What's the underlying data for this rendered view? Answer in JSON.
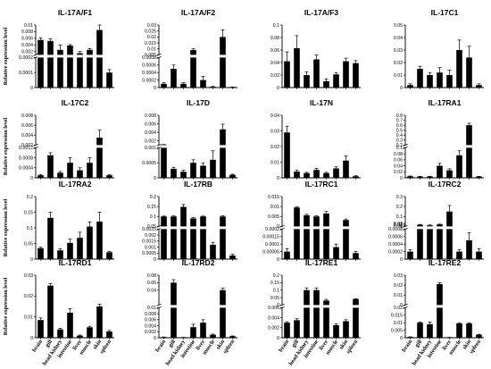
{
  "figure": {
    "ylabel": "Relative expression level",
    "categories": [
      "brain",
      "gill",
      "head kidney",
      "intestine",
      "liver",
      "muscle",
      "skin",
      "spleen"
    ]
  },
  "chart_data": [
    {
      "type": "bar",
      "title": "IL-17A/F1",
      "categories": [
        "brain",
        "gill",
        "head kidney",
        "intestine",
        "liver",
        "muscle",
        "skin",
        "spleen"
      ],
      "values": [
        0.0055,
        0.0052,
        0.0025,
        0.0038,
        0.0015,
        0.0025,
        0.0085,
        0.0001
      ],
      "error": [
        0.0006,
        0.0006,
        0.0015,
        0.0003,
        0.0005,
        0.0004,
        0.0022,
        2e-05
      ],
      "axis": {
        "type": "broken",
        "lower": {
          "range": [
            0,
            0.0002
          ],
          "ticks": [
            0,
            0.0001,
            0.0002
          ]
        },
        "upper": {
          "range": [
            0.001,
            0.01
          ],
          "ticks": [
            0.002,
            0.004,
            0.006,
            0.008,
            0.01
          ]
        }
      }
    },
    {
      "type": "bar",
      "title": "IL-17A/F2",
      "categories": [
        "brain",
        "gill",
        "head kidney",
        "intestine",
        "liver",
        "muscle",
        "skin",
        "spleen"
      ],
      "values": [
        0.0001,
        0.0005,
        0.0001,
        0.009,
        0.0002,
        2e-05,
        0.02,
        1e-05
      ],
      "error": [
        3e-05,
        0.0001,
        3e-05,
        0.001,
        0.0001,
        1e-05,
        0.006,
        5e-06
      ],
      "axis": {
        "type": "broken",
        "lower": {
          "range": [
            0,
            0.0008
          ],
          "ticks": [
            0,
            0.0002,
            0.0004,
            0.0006,
            0.0008
          ]
        },
        "upper": {
          "range": [
            0.005,
            0.03
          ],
          "ticks": [
            0.005,
            0.01,
            0.015,
            0.02,
            0.025,
            0.03
          ]
        }
      }
    },
    {
      "type": "bar",
      "title": "IL-17A/F3",
      "categories": [
        "brain",
        "gill",
        "head kidney",
        "intestine",
        "liver",
        "muscle",
        "skin",
        "spleen"
      ],
      "values": [
        0.042,
        0.063,
        0.02,
        0.045,
        0.01,
        0.021,
        0.042,
        0.039
      ],
      "error": [
        0.015,
        0.02,
        0.005,
        0.007,
        0.004,
        0.003,
        0.005,
        0.004
      ],
      "axis": {
        "type": "linear",
        "range": [
          0,
          0.1
        ],
        "ticks": [
          0,
          0.02,
          0.04,
          0.06,
          0.08,
          0.1
        ]
      }
    },
    {
      "type": "bar",
      "title": "IL-17C1",
      "categories": [
        "brain",
        "gill",
        "head kidney",
        "intestine",
        "liver",
        "muscle",
        "skin",
        "spleen"
      ],
      "values": [
        0.002,
        0.015,
        0.01,
        0.012,
        0.01,
        0.03,
        0.024,
        0.002
      ],
      "error": [
        0.001,
        0.002,
        0.002,
        0.004,
        0.004,
        0.008,
        0.009,
        0.001
      ],
      "axis": {
        "type": "linear",
        "range": [
          0,
          0.05
        ],
        "ticks": [
          0,
          0.01,
          0.02,
          0.03,
          0.04,
          0.05
        ]
      }
    },
    {
      "type": "bar",
      "title": "IL-17C2",
      "categories": [
        "brain",
        "gill",
        "head kidney",
        "intestine",
        "liver",
        "muscle",
        "skin",
        "spleen"
      ],
      "values": [
        0.0001,
        0.0009,
        0.0002,
        0.0006,
        0.0003,
        0.0006,
        0.0035,
        0.0001
      ],
      "error": [
        3e-05,
        0.0001,
        5e-05,
        0.0002,
        0.0001,
        0.0002,
        0.0015,
        2e-05
      ],
      "axis": {
        "type": "broken",
        "lower": {
          "range": [
            0,
            0.0012
          ],
          "ticks": [
            0,
            0.0004,
            0.0008,
            0.0012
          ]
        },
        "upper": {
          "range": [
            0.002,
            0.008
          ],
          "ticks": [
            0.002,
            0.004,
            0.006,
            0.008
          ]
        }
      }
    },
    {
      "type": "bar",
      "title": "IL-17D",
      "categories": [
        "brain",
        "gill",
        "head kidney",
        "intestine",
        "liver",
        "muscle",
        "skin",
        "spleen"
      ],
      "values": [
        0.0011,
        0.0003,
        0.0002,
        0.0005,
        0.0004,
        0.0006,
        0.0047,
        0.0001
      ],
      "error": [
        5e-05,
        5e-05,
        5e-05,
        0.0001,
        0.0001,
        0.0003,
        0.0012,
        2e-05
      ],
      "axis": {
        "type": "broken",
        "lower": {
          "range": [
            0,
            0.001
          ],
          "ticks": [
            0,
            0.0005,
            0.001
          ]
        },
        "upper": {
          "range": [
            0.001,
            0.008
          ],
          "ticks": [
            0.002,
            0.004,
            0.006,
            0.008
          ]
        }
      }
    },
    {
      "type": "bar",
      "title": "IL-17N",
      "categories": [
        "brain",
        "gill",
        "head kidney",
        "intestine",
        "liver",
        "muscle",
        "skin",
        "spleen"
      ],
      "values": [
        0.029,
        0.004,
        0.003,
        0.005,
        0.003,
        0.006,
        0.011,
        0.001
      ],
      "error": [
        0.004,
        0.001,
        0.0005,
        0.001,
        0.0005,
        0.001,
        0.003,
        0.0003
      ],
      "axis": {
        "type": "linear",
        "range": [
          0,
          0.04
        ],
        "ticks": [
          0,
          0.01,
          0.02,
          0.03,
          0.04
        ]
      }
    },
    {
      "type": "bar",
      "title": "IL-17RA1",
      "categories": [
        "brain",
        "gill",
        "head kidney",
        "intestine",
        "liver",
        "muscle",
        "skin",
        "spleen"
      ],
      "values": [
        0.005,
        0.004,
        0.004,
        0.04,
        0.025,
        0.075,
        0.6,
        0.004
      ],
      "error": [
        0.001,
        0.001,
        0.001,
        0.008,
        0.005,
        0.015,
        0.04,
        0.001
      ],
      "axis": {
        "type": "broken",
        "lower": {
          "range": [
            0,
            0.1
          ],
          "ticks": [
            0,
            0.02,
            0.04,
            0.06,
            0.08,
            0.1
          ]
        },
        "upper": {
          "range": [
            0.2,
            0.8
          ],
          "ticks": [
            0.2,
            0.3,
            0.4,
            0.5,
            0.6,
            0.7,
            0.8
          ]
        }
      }
    },
    {
      "type": "bar",
      "title": "IL-17RA2",
      "categories": [
        "brain",
        "gill",
        "head kidney",
        "intestine",
        "liver",
        "muscle",
        "skin",
        "spleen"
      ],
      "values": [
        0.035,
        0.132,
        0.028,
        0.052,
        0.068,
        0.104,
        0.12,
        0.022
      ],
      "error": [
        0.003,
        0.018,
        0.005,
        0.012,
        0.018,
        0.015,
        0.03,
        0.003
      ],
      "axis": {
        "type": "linear",
        "range": [
          0,
          0.2
        ],
        "ticks": [
          0,
          0.05,
          0.1,
          0.15,
          0.2
        ]
      }
    },
    {
      "type": "bar",
      "title": "IL-17RB",
      "categories": [
        "brain",
        "gill",
        "head kidney",
        "intestine",
        "liver",
        "muscle",
        "skin",
        "spleen"
      ],
      "values": [
        0.1,
        0.1,
        0.148,
        0.09,
        0.1,
        0.0012,
        0.1,
        0.0003
      ],
      "error": [
        0.002,
        0.003,
        0.012,
        0.004,
        0.002,
        0.0002,
        0.003,
        0.0001
      ],
      "axis": {
        "type": "broken",
        "lower": {
          "range": [
            0,
            0.0025
          ],
          "ticks": [
            0,
            0.0005,
            0.001,
            0.0015,
            0.002,
            0.0025
          ]
        },
        "upper": {
          "range": [
            0.05,
            0.2
          ],
          "ticks": [
            0.05,
            0.1,
            0.15,
            0.2
          ]
        }
      }
    },
    {
      "type": "bar",
      "title": "IL-17RC1",
      "categories": [
        "brain",
        "gill",
        "head kidney",
        "intestine",
        "liver",
        "muscle",
        "skin",
        "spleen"
      ],
      "values": [
        5e-05,
        0.0095,
        0.0056,
        0.005,
        0.0065,
        8e-05,
        0.0032,
        4e-05
      ],
      "error": [
        2e-05,
        0.0003,
        0.0005,
        0.0003,
        0.001,
        2e-05,
        0.0005,
        1e-05
      ],
      "axis": {
        "type": "broken",
        "lower": {
          "range": [
            0,
            0.0002
          ],
          "ticks": [
            0,
            5e-05,
            0.0001,
            0.00015,
            0.0002
          ]
        },
        "upper": {
          "range": [
            0,
            0.015
          ],
          "ticks": [
            0,
            0.005,
            0.01,
            0.015
          ]
        }
      }
    },
    {
      "type": "bar",
      "title": "IL-17RC2",
      "categories": [
        "brain",
        "gill",
        "head kidney",
        "intestine",
        "liver",
        "muscle",
        "skin",
        "spleen"
      ],
      "values": [
        0.0002,
        0.016,
        0.01,
        0.02,
        0.15,
        0.0002,
        0.0005,
        0.0002
      ],
      "error": [
        5e-05,
        0.004,
        0.005,
        0.003,
        0.06,
        5e-05,
        0.0002,
        8e-05
      ],
      "axis": {
        "type": "broken",
        "lower": {
          "range": [
            0,
            0.0008
          ],
          "ticks": [
            0,
            0.0002,
            0.0004,
            0.0006,
            0.0008
          ]
        },
        "upper": {
          "range": [
            0,
            0.3
          ],
          "ticks": [
            0,
            0.01,
            0.02,
            0.03,
            0.1,
            0.2,
            0.3
          ]
        }
      }
    },
    {
      "type": "bar",
      "title": "IL-17RD1",
      "categories": [
        "brain",
        "gill",
        "head kidney",
        "intestine",
        "liver",
        "muscle",
        "skin",
        "spleen"
      ],
      "values": [
        0.0085,
        0.025,
        0.004,
        0.012,
        0.001,
        0.005,
        0.015,
        0.003
      ],
      "error": [
        0.001,
        0.001,
        0.0005,
        0.002,
        0.0003,
        0.0005,
        0.001,
        0.0005
      ],
      "axis": {
        "type": "linear",
        "range": [
          0,
          0.03
        ],
        "ticks": [
          0,
          0.01,
          0.02,
          0.03
        ]
      }
    },
    {
      "type": "bar",
      "title": "IL-17RD2",
      "categories": [
        "brain",
        "gill",
        "head kidney",
        "intestine",
        "liver",
        "muscle",
        "skin",
        "spleen"
      ],
      "values": [
        0.0002,
        0.06,
        0.0001,
        0.0035,
        0.005,
        0.001,
        0.04,
        0.0005
      ],
      "error": [
        5e-05,
        0.008,
        3e-05,
        0.001,
        0.001,
        0.0002,
        0.005,
        0.0001
      ],
      "axis": {
        "type": "broken",
        "lower": {
          "range": [
            0,
            0.01
          ],
          "ticks": [
            0,
            0.002,
            0.004,
            0.006,
            0.008,
            0.01
          ]
        },
        "upper": {
          "range": [
            0,
            0.08
          ],
          "ticks": [
            0.04,
            0.06,
            0.08
          ]
        }
      }
    },
    {
      "type": "bar",
      "title": "IL-17RE1",
      "categories": [
        "brain",
        "gill",
        "head kidney",
        "intestine",
        "liver",
        "muscle",
        "skin",
        "spleen"
      ],
      "values": [
        0.003,
        0.0035,
        0.1,
        0.1,
        0.03,
        0.0025,
        0.0033,
        0.04
      ],
      "error": [
        0.0002,
        0.0003,
        0.015,
        0.015,
        0.008,
        0.0003,
        0.0003,
        0.003
      ],
      "axis": {
        "type": "broken",
        "lower": {
          "range": [
            0,
            0.006
          ],
          "ticks": [
            0,
            0.002,
            0.004,
            0.006
          ]
        },
        "upper": {
          "range": [
            0,
            0.2
          ],
          "ticks": [
            0,
            0.05,
            0.1,
            0.15,
            0.2
          ]
        }
      }
    },
    {
      "type": "bar",
      "title": "IL-17RE2",
      "categories": [
        "brain",
        "gill",
        "head kidney",
        "intestine",
        "liver",
        "muscle",
        "skin",
        "spleen"
      ],
      "values": [
        0.0005,
        0.01,
        0.009,
        0.021,
        0.0002,
        0.0095,
        0.0095,
        0.002
      ],
      "error": [
        0.0001,
        0.0005,
        0.0015,
        0.0015,
        5e-05,
        0.0005,
        0.0005,
        0.0003
      ],
      "axis": {
        "type": "broken",
        "lower": {
          "range": [
            0,
            0.02
          ],
          "ticks": [
            0,
            0.005,
            0.01,
            0.015,
            0.02
          ]
        },
        "upper": {
          "range": [
            0,
            0.03
          ],
          "ticks": [
            0,
            0.01,
            0.02,
            0.03
          ]
        }
      }
    }
  ]
}
